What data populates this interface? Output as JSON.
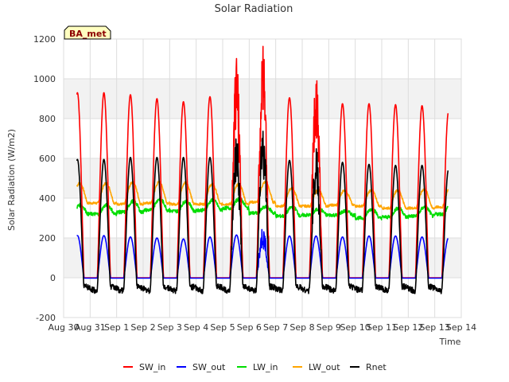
{
  "chart_data": {
    "type": "line",
    "title": "Solar Radiation",
    "xlabel": "Time",
    "ylabel": "Solar Radiation (W/m2)",
    "ylim": [
      -200,
      1200
    ],
    "yticks": [
      -200,
      0,
      200,
      400,
      600,
      800,
      1000,
      1200
    ],
    "xlim": [
      0,
      15
    ],
    "x_tick_labels": [
      "Aug 30",
      "Aug 31",
      "Sep 1",
      "Sep 2",
      "Sep 3",
      "Sep 4",
      "Sep 5",
      "Sep 6",
      "Sep 7",
      "Sep 8",
      "Sep 9",
      "Sep 10",
      "Sep 11",
      "Sep 12",
      "Sep 13",
      "Sep 14"
    ],
    "x_data_start": "Aug 30 12:00",
    "x_data_end": "Sep 13 12:00",
    "grid": true,
    "badge": "BA_met",
    "legend_position": "bottom",
    "days": [
      "Aug 31",
      "Sep 1",
      "Sep 2",
      "Sep 3",
      "Sep 4",
      "Sep 5",
      "Sep 6",
      "Sep 7",
      "Sep 8",
      "Sep 9",
      "Sep 10",
      "Sep 11",
      "Sep 12",
      "Sep 13"
    ],
    "series": [
      {
        "name": "SW_in",
        "color": "#ff0000",
        "daily_peak": [
          930,
          920,
          900,
          885,
          910,
          965,
          995,
          905,
          885,
          875,
          875,
          870,
          865,
          835
        ]
      },
      {
        "name": "SW_out",
        "color": "#0000ff",
        "night": -2,
        "daily_peak": [
          212,
          205,
          200,
          195,
          205,
          215,
          230,
          210,
          210,
          205,
          210,
          210,
          205,
          200
        ]
      },
      {
        "name": "LW_in",
        "color": "#00dd00",
        "daily_low": [
          320,
          330,
          340,
          335,
          340,
          350,
          325,
          310,
          315,
          315,
          300,
          305,
          310,
          320
        ],
        "daily_high": [
          365,
          385,
          395,
          385,
          390,
          395,
          355,
          355,
          345,
          335,
          345,
          350,
          355,
          370
        ]
      },
      {
        "name": "LW_out",
        "color": "#ffa500",
        "daily_low": [
          375,
          370,
          375,
          370,
          370,
          370,
          380,
          360,
          360,
          365,
          360,
          350,
          350,
          355
        ],
        "daily_high": [
          475,
          480,
          480,
          478,
          470,
          470,
          480,
          450,
          440,
          440,
          440,
          440,
          445,
          460
        ]
      },
      {
        "name": "Rnet",
        "color": "#000000",
        "night": -55,
        "daily_peak": [
          595,
          605,
          605,
          605,
          605,
          640,
          680,
          590,
          580,
          580,
          570,
          565,
          565,
          545
        ]
      }
    ]
  }
}
